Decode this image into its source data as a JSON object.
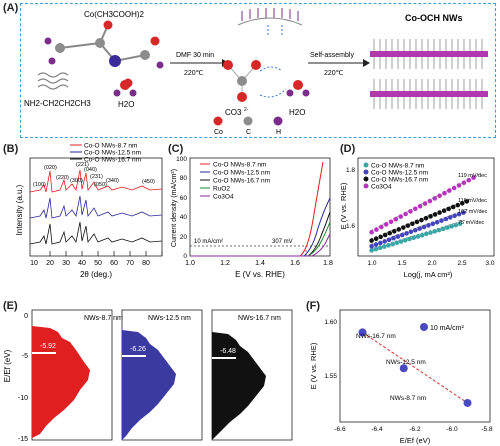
{
  "panelA": {
    "label": "(A)",
    "precursor_formula": "Co(CH3COOH)2",
    "amine_formula": "NH2-CH2CH2CH3",
    "water1": "H2O",
    "step1_label": "DMF 30 min",
    "step1_temp": "220℃",
    "co3_label": "CO3",
    "co3_charge": "2-",
    "water2": "H2O",
    "step2_label": "Self-assembly",
    "step2_temp": "220℃",
    "product_label": "Co-OCH NWs",
    "legend": [
      {
        "label": "Co",
        "color": "#d62828"
      },
      {
        "label": "C",
        "color": "#8c8c8c"
      },
      {
        "label": "H",
        "color": "#7b2d8b"
      }
    ]
  },
  "chart_data": [
    {
      "panel": "(B)",
      "type": "line",
      "xlabel": "2θ (deg.)",
      "ylabel": "Intensity (a.u.)",
      "xlim": [
        5,
        80
      ],
      "x_ticks": [
        "10",
        "20",
        "30",
        "40",
        "50",
        "60",
        "70",
        "80"
      ],
      "series": [
        {
          "name": "Co-O NWs-8.7 nm",
          "color": "#e02020"
        },
        {
          "name": "Co-O NWs-12.5 nm",
          "color": "#2a2a9a"
        },
        {
          "name": "Co-O NWs-16.7 nm",
          "color": "#111111"
        }
      ],
      "peak_labels": [
        "(100)",
        "(020)",
        "(220)",
        "(300)",
        "(221)",
        "(040)",
        "(231)",
        "(050)",
        "(340)",
        "(450)"
      ]
    },
    {
      "panel": "(C)",
      "type": "line",
      "xlabel": "E (V vs. RHE)",
      "ylabel": "Current density (mA/cm²)",
      "xlim": [
        1.0,
        1.8
      ],
      "x_ticks": [
        "1.0",
        "1.2",
        "1.4",
        "1.6",
        "1.8"
      ],
      "y_ticks": [
        "0",
        "20",
        "40",
        "60",
        "80",
        "100"
      ],
      "ylim": [
        0,
        100
      ],
      "annotations": [
        "10 mA/cm²",
        "307 mV"
      ],
      "series": [
        {
          "name": "Co-O NWs-8.7 nm",
          "color": "#e02020",
          "onset": 1.537
        },
        {
          "name": "Co-O NWs-12.5 nm",
          "color": "#2a2a9a",
          "onset": 1.57
        },
        {
          "name": "Co-O NWs-16.7 nm",
          "color": "#111111",
          "onset": 1.6
        },
        {
          "name": "RuO2",
          "color": "#1a8a2a",
          "onset": 1.61
        },
        {
          "name": "Co3O4",
          "color": "#8a2a9a",
          "onset": 1.64
        }
      ]
    },
    {
      "panel": "(D)",
      "type": "scatter",
      "xlabel": "Log(j, mA cm²)",
      "ylabel": "E (V vs. RHE)",
      "x_ticks": [
        "1.0",
        "1.5",
        "2.0",
        "2.5",
        "3.0"
      ],
      "y_ticks": [
        "1.6",
        "1.8"
      ],
      "xlim": [
        1.0,
        3.0
      ],
      "ylim": [
        1.5,
        1.85
      ],
      "series": [
        {
          "name": "Co-O NWs-8.7 nm",
          "color": "#3aa6a6",
          "slope_label": "75 mV/dec",
          "x0": 1.2,
          "x1": 2.5,
          "y0": 1.52,
          "y1": 1.615
        },
        {
          "name": "Co-O NWs-12.5 nm",
          "color": "#4444bb",
          "slope_label": "102 mV/dec",
          "x0": 1.2,
          "x1": 2.55,
          "y0": 1.535,
          "y1": 1.655
        },
        {
          "name": "Co-O NWs-16.7 nm",
          "color": "#111111",
          "slope_label": "116 mV/dec",
          "x0": 1.2,
          "x1": 2.6,
          "y0": 1.555,
          "y1": 1.695
        },
        {
          "name": "Co3O4",
          "color": "#b833c0",
          "slope_label": "119 mV/dec",
          "x0": 1.2,
          "x1": 2.7,
          "y0": 1.585,
          "y1": 1.78
        }
      ]
    },
    {
      "panel": "(E)",
      "type": "area",
      "ylabel": "E/Ef (eV)",
      "ylim": [
        -15,
        0
      ],
      "y_ticks": [
        "0",
        "-5",
        "-10",
        "-15"
      ],
      "subpanels": [
        {
          "name": "NWs-8.7 nm",
          "color": "#e02020",
          "center": "-5.92"
        },
        {
          "name": "NWs-12.5 nm",
          "color": "#3a3aa0",
          "center": "-6.26"
        },
        {
          "name": "NWs-16.7 nm",
          "color": "#111111",
          "center": "-6.48"
        }
      ]
    },
    {
      "panel": "(F)",
      "type": "scatter",
      "xlabel": "E/Ef (eV)",
      "ylabel": "E (V vs. RHE)",
      "xlim": [
        -6.6,
        -5.8
      ],
      "ylim": [
        1.52,
        1.62
      ],
      "x_ticks": [
        "-6.6",
        "-6.4",
        "-6.2",
        "-6.0",
        "-5.8"
      ],
      "y_ticks": [
        "1.55",
        "1.60"
      ],
      "annotation": "10 mA/cm²",
      "points": [
        {
          "label": "NWs-16.7 nm",
          "x": -6.48,
          "y": 1.6
        },
        {
          "label": "NWs-12.5 nm",
          "x": -6.26,
          "y": 1.568
        },
        {
          "label": "NWs-8.7 nm",
          "x": -5.92,
          "y": 1.537
        }
      ]
    }
  ]
}
